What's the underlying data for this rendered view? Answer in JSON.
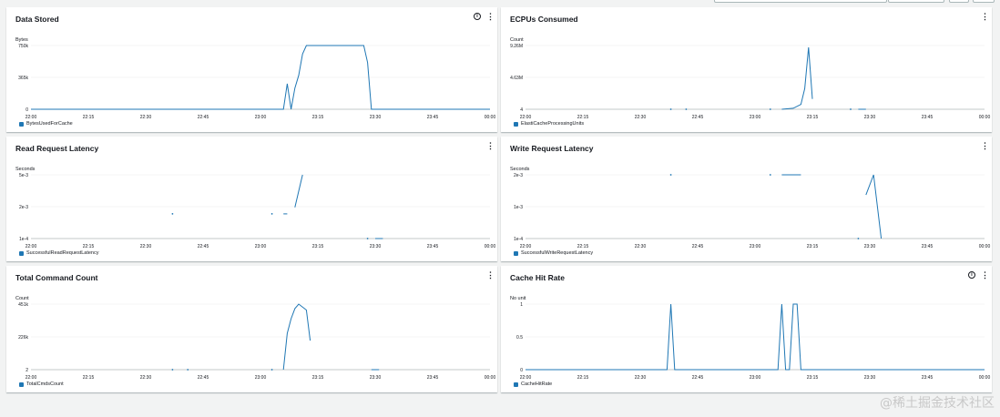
{
  "line_color": "#1f77b4",
  "watermark": "@稀土掘金技术社区",
  "x_ticks": [
    "22:00",
    "22:15",
    "22:30",
    "22:45",
    "23:00",
    "23:15",
    "23:30",
    "23:45",
    "00:00"
  ],
  "panels": [
    {
      "id": "data-stored",
      "title": "Data Stored",
      "has_info": true,
      "unit": "Bytes",
      "y_ticks": [
        "750k",
        "365k",
        "0"
      ],
      "legend": "BytesUsedForCache",
      "chart_data": {
        "type": "line",
        "x_range": [
          "22:00",
          "00:00"
        ],
        "ylim": [
          0,
          750000
        ],
        "series": [
          {
            "name": "BytesUsedForCache",
            "segments": [
              [
                [
                  "22:00",
                  0
                ],
                [
                  "23:06",
                  0
                ],
                [
                  "23:07",
                  300000
                ],
                [
                  "23:08",
                  0
                ],
                [
                  "23:09",
                  250000
                ],
                [
                  "23:10",
                  400000
                ],
                [
                  "23:11",
                  650000
                ],
                [
                  "23:12",
                  750000
                ],
                [
                  "23:27",
                  750000
                ],
                [
                  "23:28",
                  550000
                ],
                [
                  "23:29",
                  0
                ],
                [
                  "00:00",
                  0
                ]
              ]
            ]
          }
        ]
      }
    },
    {
      "id": "ecpus-consumed",
      "title": "ECPUs Consumed",
      "has_info": false,
      "unit": "Count",
      "y_ticks": [
        "9.26M",
        "4.63M",
        "4"
      ],
      "legend": "ElastiCacheProcessingUnits",
      "chart_data": {
        "type": "line",
        "x_range": [
          "22:00",
          "00:00"
        ],
        "ylim": [
          4,
          9260000
        ],
        "series": [
          {
            "name": "ElastiCacheProcessingUnits",
            "segments": [
              [
                [
                  "22:38",
                  4
                ]
              ],
              [
                [
                  "22:42",
                  4
                ]
              ],
              [
                [
                  "23:04",
                  4
                ]
              ],
              [
                [
                  "23:07",
                  4
                ],
                [
                  "23:10",
                  150000
                ],
                [
                  "23:12",
                  700000
                ],
                [
                  "23:13",
                  3000000
                ],
                [
                  "23:14",
                  9000000
                ],
                [
                  "23:15",
                  1500000
                ]
              ],
              [
                [
                  "23:25",
                  4
                ]
              ],
              [
                [
                  "23:27",
                  4
                ],
                [
                  "23:29",
                  4
                ]
              ]
            ]
          }
        ]
      }
    },
    {
      "id": "read-request-latency",
      "title": "Read Request Latency",
      "has_info": false,
      "unit": "Seconds",
      "y_ticks": [
        "5e-3",
        "2e-3",
        "1e-4"
      ],
      "legend": "SuccessfulReadRequestLatency",
      "chart_data": {
        "type": "line",
        "x_range": [
          "22:00",
          "00:00"
        ],
        "ylim": [
          0.0001,
          0.005
        ],
        "series": [
          {
            "name": "SuccessfulReadRequestLatency",
            "segments": [
              [
                [
                  "22:37",
                  0.002
                ]
              ],
              [
                [
                  "23:03",
                  0.002
                ]
              ],
              [
                [
                  "23:06",
                  0.002
                ],
                [
                  "23:07",
                  0.002
                ]
              ],
              [
                [
                  "23:09",
                  0.0025
                ],
                [
                  "23:11",
                  0.005
                ]
              ],
              [
                [
                  "23:28",
                  0.0001
                ]
              ],
              [
                [
                  "23:30",
                  0.0001
                ],
                [
                  "23:32",
                  0.0001
                ]
              ]
            ]
          }
        ]
      }
    },
    {
      "id": "write-request-latency",
      "title": "Write Request Latency",
      "has_info": false,
      "unit": "Seconds",
      "y_ticks": [
        "2e-3",
        "1e-3",
        "1e-4"
      ],
      "legend": "SuccessfulWriteRequestLatency",
      "chart_data": {
        "type": "line",
        "x_range": [
          "22:00",
          "00:00"
        ],
        "ylim": [
          0.0001,
          0.002
        ],
        "series": [
          {
            "name": "SuccessfulWriteRequestLatency",
            "segments": [
              [
                [
                  "22:38",
                  0.002
                ]
              ],
              [
                [
                  "23:04",
                  0.002
                ]
              ],
              [
                [
                  "23:07",
                  0.002
                ],
                [
                  "23:12",
                  0.002
                ]
              ],
              [
                [
                  "23:27",
                  0.0001
                ]
              ],
              [
                [
                  "23:29",
                  0.0014
                ],
                [
                  "23:31",
                  0.002
                ],
                [
                  "23:33",
                  0.0001
                ]
              ]
            ]
          }
        ]
      }
    },
    {
      "id": "total-command-count",
      "title": "Total Command Count",
      "has_info": false,
      "unit": "Count",
      "y_ticks": [
        "451k",
        "226k",
        "2"
      ],
      "legend": "TotalCmdsCount",
      "chart_data": {
        "type": "line",
        "x_range": [
          "22:00",
          "00:00"
        ],
        "ylim": [
          2,
          451000
        ],
        "series": [
          {
            "name": "TotalCmdsCount",
            "segments": [
              [
                [
                  "22:37",
                  2
                ]
              ],
              [
                [
                  "22:41",
                  2
                ]
              ],
              [
                [
                  "23:03",
                  2
                ]
              ],
              [
                [
                  "23:06",
                  2
                ],
                [
                  "23:07",
                  250000
                ],
                [
                  "23:08",
                  350000
                ],
                [
                  "23:09",
                  420000
                ],
                [
                  "23:10",
                  451000
                ],
                [
                  "23:12",
                  410000
                ],
                [
                  "23:13",
                  200000
                ]
              ],
              [
                [
                  "23:29",
                  2
                ],
                [
                  "23:31",
                  2
                ]
              ]
            ]
          }
        ]
      }
    },
    {
      "id": "cache-hit-rate",
      "title": "Cache Hit Rate",
      "has_info": true,
      "unit": "No unit",
      "y_ticks": [
        "1",
        "0.5",
        "0"
      ],
      "legend": "CacheHitRate",
      "chart_data": {
        "type": "line",
        "x_range": [
          "22:00",
          "00:00"
        ],
        "ylim": [
          0,
          1
        ],
        "series": [
          {
            "name": "CacheHitRate",
            "segments": [
              [
                [
                  "22:00",
                  0
                ],
                [
                  "22:37",
                  0
                ],
                [
                  "22:38",
                  1
                ],
                [
                  "22:39",
                  0
                ],
                [
                  "23:06",
                  0
                ],
                [
                  "23:07",
                  1
                ],
                [
                  "23:08",
                  0
                ],
                [
                  "23:09",
                  0
                ],
                [
                  "23:10",
                  1
                ],
                [
                  "23:11",
                  1
                ],
                [
                  "23:12",
                  0
                ],
                [
                  "00:00",
                  0
                ]
              ]
            ]
          }
        ]
      }
    }
  ]
}
